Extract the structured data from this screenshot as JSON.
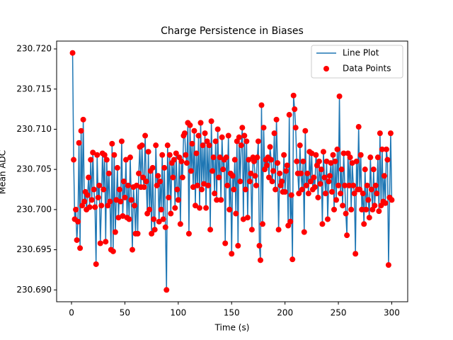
{
  "chart_data": {
    "type": "line",
    "title": "Charge Persistence in Biases",
    "x_label": "Time (s)",
    "y_label": "Mean ADC",
    "line_label": "Line Plot",
    "line_color": "#1f77b4",
    "points_label": "Data Points",
    "points_color": "#ff0000",
    "legend": "upper right",
    "x": [
      1,
      2,
      3,
      4,
      5,
      6,
      7,
      8,
      9,
      10,
      11,
      12,
      13,
      14,
      15,
      16,
      17,
      18,
      19,
      20,
      21,
      22,
      23,
      24,
      25,
      26,
      27,
      28,
      29,
      30,
      31,
      32,
      33,
      34,
      35,
      36,
      37,
      38,
      39,
      40,
      41,
      42,
      43,
      44,
      45,
      46,
      47,
      48,
      49,
      50,
      51,
      52,
      53,
      54,
      55,
      56,
      57,
      58,
      59,
      60,
      61,
      62,
      63,
      64,
      65,
      66,
      67,
      68,
      69,
      70,
      71,
      72,
      73,
      74,
      75,
      76,
      77,
      78,
      79,
      80,
      81,
      82,
      83,
      84,
      85,
      86,
      87,
      88,
      89,
      90,
      91,
      92,
      93,
      94,
      95,
      96,
      97,
      98,
      99,
      100,
      101,
      102,
      103,
      104,
      105,
      106,
      107,
      108,
      109,
      110,
      111,
      112,
      113,
      114,
      115,
      116,
      117,
      118,
      119,
      120,
      121,
      122,
      123,
      124,
      125,
      126,
      127,
      128,
      129,
      130,
      131,
      132,
      133,
      134,
      135,
      136,
      137,
      138,
      139,
      140,
      141,
      142,
      143,
      144,
      145,
      146,
      147,
      148,
      149,
      150,
      151,
      152,
      153,
      154,
      155,
      156,
      157,
      158,
      159,
      160,
      161,
      162,
      163,
      164,
      165,
      166,
      167,
      168,
      169,
      170,
      171,
      172,
      173,
      174,
      175,
      176,
      177,
      178,
      179,
      180,
      181,
      182,
      183,
      184,
      185,
      186,
      187,
      188,
      189,
      190,
      191,
      192,
      193,
      194,
      195,
      196,
      197,
      198,
      199,
      200,
      201,
      202,
      203,
      204,
      205,
      206,
      207,
      208,
      209,
      210,
      211,
      212,
      213,
      214,
      215,
      216,
      217,
      218,
      219,
      220,
      221,
      222,
      223,
      224,
      225,
      226,
      227,
      228,
      229,
      230,
      231,
      232,
      233,
      234,
      235,
      236,
      237,
      238,
      239,
      240,
      241,
      242,
      243,
      244,
      245,
      246,
      247,
      248,
      249,
      250,
      251,
      252,
      253,
      254,
      255,
      256,
      257,
      258,
      259,
      260,
      261,
      262,
      263,
      264,
      265,
      266,
      267,
      268,
      269,
      270,
      271,
      272,
      273,
      274,
      275,
      276,
      277,
      278,
      279,
      280,
      281,
      282,
      283,
      284,
      285,
      286,
      287,
      288,
      289,
      290,
      291,
      292,
      293,
      294,
      295,
      296,
      297,
      298,
      299,
      300
    ],
    "values": [
      230.7195,
      230.7062,
      230.6988,
      230.7,
      230.6962,
      230.6985,
      230.7083,
      230.6952,
      230.7098,
      230.7005,
      230.7112,
      230.701,
      230.7022,
      230.7,
      230.7018,
      230.704,
      230.7003,
      230.7062,
      230.7012,
      230.7071,
      230.7025,
      230.7003,
      230.6932,
      230.7068,
      230.7015,
      230.703,
      230.6958,
      230.7005,
      230.707,
      230.7025,
      230.7068,
      230.696,
      230.7062,
      230.7005,
      230.7045,
      230.701,
      230.695,
      230.7082,
      230.6948,
      230.7068,
      230.6972,
      230.7012,
      230.7052,
      230.699,
      230.7025,
      230.701,
      230.7085,
      230.6992,
      230.7035,
      230.7015,
      230.7062,
      230.699,
      230.703,
      230.6988,
      230.7065,
      230.7012,
      230.695,
      230.7028,
      230.7005,
      230.697,
      230.703,
      230.697,
      230.7045,
      230.7078,
      230.7028,
      230.708,
      230.704,
      230.7028,
      230.7092,
      230.7035,
      230.6995,
      230.7072,
      230.7,
      230.7048,
      230.697,
      230.7052,
      230.6988,
      230.6975,
      230.708,
      230.703,
      230.7042,
      230.6985,
      230.7035,
      230.7,
      230.7068,
      230.6988,
      230.7052,
      230.6978,
      230.69,
      230.708,
      230.7015,
      230.7068,
      230.6995,
      230.7058,
      230.704,
      230.7062,
      230.7002,
      230.707,
      230.7025,
      230.7012,
      230.7065,
      230.6982,
      230.706,
      230.704,
      230.7092,
      230.7095,
      230.7068,
      230.7058,
      230.7108,
      230.697,
      230.7105,
      230.7048,
      230.7082,
      230.7028,
      230.7098,
      230.7005,
      230.707,
      230.703,
      230.7092,
      230.7002,
      230.7108,
      230.7025,
      230.708,
      230.7032,
      230.7095,
      230.7002,
      230.7085,
      230.703,
      230.708,
      230.6975,
      230.711,
      230.7048,
      230.7065,
      230.702,
      230.7085,
      230.7012,
      230.71,
      230.704,
      230.7065,
      230.7012,
      230.709,
      230.705,
      230.7062,
      230.6958,
      230.7065,
      230.703,
      230.7092,
      230.7,
      230.7045,
      230.6945,
      230.7042,
      230.7025,
      230.7062,
      230.6995,
      230.7085,
      230.6955,
      230.709,
      230.7035,
      230.708,
      230.7102,
      230.6988,
      230.7092,
      230.7025,
      230.7085,
      230.699,
      230.7062,
      230.7035,
      230.7045,
      230.6975,
      230.7065,
      230.706,
      230.7042,
      230.703,
      230.7065,
      230.7085,
      230.6955,
      230.6937,
      230.713,
      230.6982,
      230.7102,
      230.705,
      230.7062,
      230.7055,
      230.7065,
      230.704,
      230.7078,
      230.7062,
      230.7035,
      230.7048,
      230.7095,
      230.7025,
      230.7112,
      230.7058,
      230.6975,
      230.7045,
      230.703,
      230.7035,
      230.7022,
      230.7068,
      230.7022,
      230.7048,
      230.7055,
      230.698,
      230.7118,
      230.6985,
      230.7018,
      230.6938,
      230.7142,
      230.7125,
      230.7102,
      230.706,
      230.7045,
      230.702,
      230.708,
      230.7045,
      230.7025,
      230.706,
      230.6972,
      230.7098,
      230.703,
      230.7045,
      230.702,
      230.7072,
      230.7035,
      230.707,
      230.7025,
      230.704,
      230.7028,
      230.7068,
      230.7055,
      230.7015,
      230.706,
      230.7032,
      230.705,
      230.6982,
      230.7072,
      230.704,
      230.702,
      230.706,
      230.6988,
      230.7035,
      230.7042,
      230.7058,
      230.7022,
      230.7068,
      230.7,
      230.706,
      230.7012,
      230.7075,
      230.703,
      230.7141,
      230.702,
      230.705,
      230.7005,
      230.707,
      230.703,
      230.6995,
      230.6968,
      230.707,
      230.703,
      230.7065,
      230.7,
      230.7058,
      230.703,
      230.702,
      230.6945,
      230.706,
      230.7025,
      230.7103,
      230.7025,
      230.7068,
      230.7,
      230.702,
      230.6982,
      230.705,
      230.7,
      230.703,
      230.7012,
      230.699,
      230.7065,
      230.7025,
      230.7,
      230.705,
      230.7005,
      230.703,
      230.702,
      230.7065,
      230.6998,
      230.7095,
      230.7005,
      230.7075,
      230.701,
      230.7042,
      230.7008,
      230.7075,
      230.7062,
      230.6931,
      230.7015,
      230.7095,
      230.7012
    ],
    "xlim": [
      -13.95,
      314.95
    ],
    "xticks": [
      0,
      50,
      100,
      150,
      200,
      250,
      300
    ],
    "ylim": [
      230.688525,
      230.720975
    ],
    "yticks": [
      {
        "value": 230.69,
        "label": "230.690"
      },
      {
        "value": 230.695,
        "label": "230.695"
      },
      {
        "value": 230.7,
        "label": "230.700"
      },
      {
        "value": 230.705,
        "label": "230.705"
      },
      {
        "value": 230.71,
        "label": "230.710"
      },
      {
        "value": 230.715,
        "label": "230.715"
      },
      {
        "value": 230.72,
        "label": "230.720"
      }
    ]
  }
}
